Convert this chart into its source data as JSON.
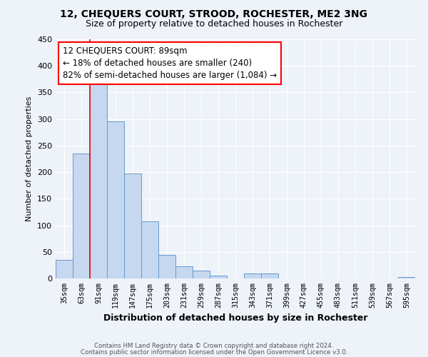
{
  "title1": "12, CHEQUERS COURT, STROOD, ROCHESTER, ME2 3NG",
  "title2": "Size of property relative to detached houses in Rochester",
  "xlabel": "Distribution of detached houses by size in Rochester",
  "ylabel": "Number of detached properties",
  "categories": [
    "35sqm",
    "63sqm",
    "91sqm",
    "119sqm",
    "147sqm",
    "175sqm",
    "203sqm",
    "231sqm",
    "259sqm",
    "287sqm",
    "315sqm",
    "343sqm",
    "371sqm",
    "399sqm",
    "427sqm",
    "455sqm",
    "483sqm",
    "511sqm",
    "539sqm",
    "567sqm",
    "595sqm"
  ],
  "values": [
    35,
    235,
    365,
    295,
    198,
    107,
    45,
    23,
    15,
    5,
    0,
    10,
    10,
    0,
    0,
    0,
    0,
    0,
    0,
    0,
    3
  ],
  "bar_color": "#c5d8f0",
  "bar_edge_color": "#6699cc",
  "annotation_text": "12 CHEQUERS COURT: 89sqm\n← 18% of detached houses are smaller (240)\n82% of semi-detached houses are larger (1,084) →",
  "annotation_box_color": "white",
  "annotation_box_edge_color": "red",
  "vline_color": "red",
  "footer1": "Contains HM Land Registry data © Crown copyright and database right 2024.",
  "footer2": "Contains public sector information licensed under the Open Government Licence v3.0.",
  "ylim": [
    0,
    450
  ],
  "yticks": [
    0,
    50,
    100,
    150,
    200,
    250,
    300,
    350,
    400,
    450
  ],
  "background_color": "#eef2f9",
  "grid_color": "#ffffff"
}
